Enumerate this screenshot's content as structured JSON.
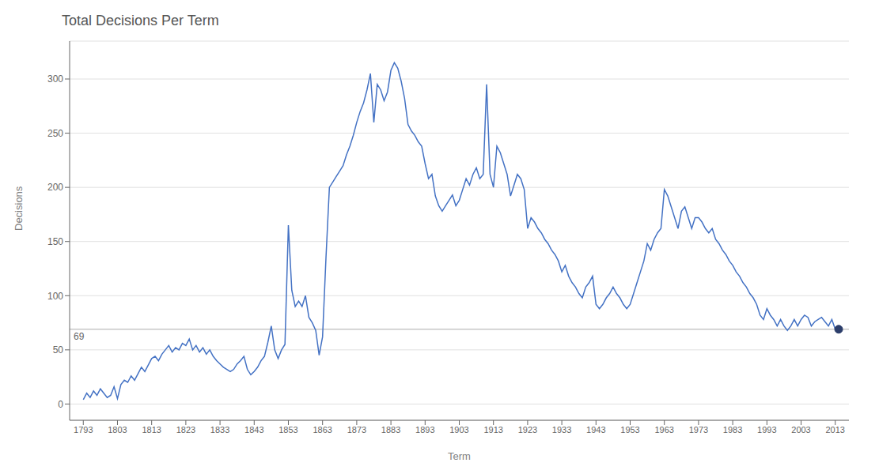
{
  "chart_data": {
    "type": "line",
    "title": "Total Decisions Per Term",
    "x_label": "Term",
    "y_label": "Decisions",
    "color": "#4472C4",
    "xlim": [
      1789,
      2017
    ],
    "ylim": [
      -15,
      335
    ],
    "xticks": [
      1793,
      1803,
      1813,
      1823,
      1833,
      1843,
      1853,
      1863,
      1873,
      1883,
      1893,
      1903,
      1913,
      1923,
      1933,
      1943,
      1953,
      1963,
      1973,
      1983,
      1993,
      2003,
      2013
    ],
    "yticks": [
      0,
      50,
      100,
      150,
      200,
      250,
      300
    ],
    "grid": true,
    "x": [
      1793,
      1794,
      1795,
      1796,
      1797,
      1798,
      1799,
      1800,
      1801,
      1802,
      1803,
      1804,
      1805,
      1806,
      1807,
      1808,
      1809,
      1810,
      1811,
      1812,
      1813,
      1814,
      1815,
      1816,
      1817,
      1818,
      1819,
      1820,
      1821,
      1822,
      1823,
      1824,
      1825,
      1826,
      1827,
      1828,
      1829,
      1830,
      1831,
      1832,
      1833,
      1834,
      1835,
      1836,
      1837,
      1838,
      1839,
      1840,
      1841,
      1842,
      1843,
      1844,
      1845,
      1846,
      1847,
      1848,
      1849,
      1850,
      1851,
      1852,
      1853,
      1854,
      1855,
      1856,
      1857,
      1858,
      1859,
      1860,
      1861,
      1862,
      1863,
      1864,
      1865,
      1866,
      1867,
      1868,
      1869,
      1870,
      1871,
      1872,
      1873,
      1874,
      1875,
      1876,
      1877,
      1878,
      1879,
      1880,
      1881,
      1882,
      1883,
      1884,
      1885,
      1886,
      1887,
      1888,
      1889,
      1890,
      1891,
      1892,
      1893,
      1894,
      1895,
      1896,
      1897,
      1898,
      1899,
      1900,
      1901,
      1902,
      1903,
      1904,
      1905,
      1906,
      1907,
      1908,
      1909,
      1910,
      1911,
      1912,
      1913,
      1914,
      1915,
      1916,
      1917,
      1918,
      1919,
      1920,
      1921,
      1922,
      1923,
      1924,
      1925,
      1926,
      1927,
      1928,
      1929,
      1930,
      1931,
      1932,
      1933,
      1934,
      1935,
      1936,
      1937,
      1938,
      1939,
      1940,
      1941,
      1942,
      1943,
      1944,
      1945,
      1946,
      1947,
      1948,
      1949,
      1950,
      1951,
      1952,
      1953,
      1954,
      1955,
      1956,
      1957,
      1958,
      1959,
      1960,
      1961,
      1962,
      1963,
      1964,
      1965,
      1966,
      1967,
      1968,
      1969,
      1970,
      1971,
      1972,
      1973,
      1974,
      1975,
      1976,
      1977,
      1978,
      1979,
      1980,
      1981,
      1982,
      1983,
      1984,
      1985,
      1986,
      1987,
      1988,
      1989,
      1990,
      1991,
      1992,
      1993,
      1994,
      1995,
      1996,
      1997,
      1998,
      1999,
      2000,
      2001,
      2002,
      2003,
      2004,
      2005,
      2006,
      2007,
      2008,
      2009,
      2010,
      2011,
      2012,
      2013,
      2014
    ],
    "values": [
      4,
      10,
      6,
      12,
      8,
      14,
      10,
      6,
      8,
      16,
      5,
      18,
      22,
      20,
      26,
      22,
      28,
      34,
      30,
      36,
      42,
      44,
      40,
      46,
      50,
      54,
      48,
      52,
      50,
      56,
      54,
      60,
      50,
      54,
      48,
      52,
      46,
      50,
      44,
      40,
      37,
      34,
      32,
      30,
      32,
      37,
      40,
      44,
      32,
      27,
      30,
      34,
      40,
      44,
      57,
      72,
      50,
      42,
      50,
      55,
      165,
      105,
      90,
      95,
      90,
      100,
      80,
      75,
      68,
      45,
      62,
      135,
      200,
      205,
      210,
      215,
      220,
      230,
      238,
      248,
      260,
      270,
      278,
      290,
      305,
      260,
      295,
      290,
      280,
      288,
      308,
      315,
      310,
      298,
      282,
      258,
      252,
      248,
      242,
      238,
      222,
      208,
      212,
      192,
      183,
      178,
      183,
      188,
      193,
      183,
      188,
      198,
      208,
      202,
      212,
      218,
      208,
      212,
      295,
      212,
      200,
      238,
      232,
      222,
      212,
      192,
      202,
      212,
      208,
      198,
      162,
      172,
      168,
      162,
      158,
      152,
      148,
      142,
      138,
      132,
      122,
      128,
      118,
      112,
      108,
      102,
      98,
      108,
      112,
      118,
      92,
      88,
      92,
      98,
      102,
      108,
      102,
      98,
      92,
      88,
      92,
      102,
      112,
      122,
      132,
      148,
      142,
      152,
      158,
      162,
      198,
      192,
      182,
      172,
      162,
      178,
      182,
      172,
      162,
      172,
      172,
      168,
      162,
      158,
      162,
      152,
      148,
      142,
      138,
      132,
      128,
      122,
      118,
      112,
      108,
      102,
      98,
      92,
      82,
      78,
      88,
      82,
      78,
      72,
      78,
      72,
      68,
      72,
      78,
      72,
      78,
      82,
      80,
      72,
      76,
      78,
      80,
      76,
      72,
      78,
      69,
      69
    ],
    "annotations": [
      {
        "type": "hline",
        "y": 69,
        "label": "69",
        "color": "#aaaaaa"
      },
      {
        "type": "point",
        "x": 2014,
        "y": 69,
        "color": "#2c3e6b",
        "marker": "circle"
      }
    ]
  }
}
